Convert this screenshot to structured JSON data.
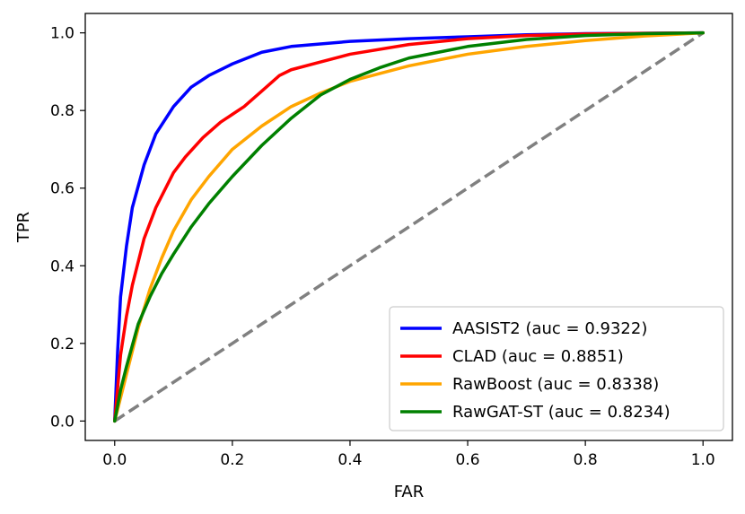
{
  "chart_data": {
    "type": "line",
    "title": "",
    "xlabel": "FAR",
    "ylabel": "TPR",
    "xlim": [
      -0.05,
      1.05
    ],
    "ylim": [
      -0.05,
      1.05
    ],
    "xticks": [
      "0.0",
      "0.2",
      "0.4",
      "0.6",
      "0.8",
      "1.0"
    ],
    "yticks": [
      "0.0",
      "0.2",
      "0.4",
      "0.6",
      "0.8",
      "1.0"
    ],
    "grid": false,
    "legend_position": "lower-right",
    "series": [
      {
        "name": "AASIST2 (auc = 0.9322)",
        "color": "#0000ff",
        "x": [
          0,
          0.005,
          0.01,
          0.02,
          0.03,
          0.05,
          0.07,
          0.1,
          0.13,
          0.16,
          0.2,
          0.25,
          0.3,
          0.4,
          0.5,
          0.6,
          0.7,
          0.8,
          0.9,
          1.0
        ],
        "y": [
          0,
          0.18,
          0.32,
          0.45,
          0.55,
          0.66,
          0.74,
          0.81,
          0.86,
          0.89,
          0.92,
          0.95,
          0.965,
          0.978,
          0.985,
          0.99,
          0.995,
          0.998,
          0.999,
          1.0
        ]
      },
      {
        "name": "CLAD (auc = 0.8851)",
        "color": "#ff0000",
        "x": [
          0,
          0.01,
          0.02,
          0.03,
          0.05,
          0.07,
          0.1,
          0.12,
          0.15,
          0.18,
          0.2,
          0.22,
          0.25,
          0.28,
          0.3,
          0.35,
          0.4,
          0.5,
          0.6,
          0.7,
          0.8,
          0.9,
          1.0
        ],
        "y": [
          0,
          0.17,
          0.27,
          0.35,
          0.47,
          0.55,
          0.64,
          0.68,
          0.73,
          0.77,
          0.79,
          0.81,
          0.85,
          0.89,
          0.905,
          0.925,
          0.945,
          0.97,
          0.985,
          0.993,
          0.997,
          0.999,
          1.0
        ]
      },
      {
        "name": "RawBoost (auc = 0.8338)",
        "color": "#ffa500",
        "x": [
          0,
          0.01,
          0.02,
          0.04,
          0.06,
          0.08,
          0.1,
          0.13,
          0.16,
          0.2,
          0.25,
          0.3,
          0.35,
          0.4,
          0.5,
          0.6,
          0.7,
          0.8,
          0.9,
          1.0
        ],
        "y": [
          0,
          0.06,
          0.12,
          0.24,
          0.34,
          0.42,
          0.49,
          0.57,
          0.63,
          0.7,
          0.76,
          0.81,
          0.845,
          0.875,
          0.915,
          0.945,
          0.965,
          0.98,
          0.992,
          1.0
        ]
      },
      {
        "name": "RawGAT-ST (auc = 0.8234)",
        "color": "#008000",
        "x": [
          0,
          0.01,
          0.02,
          0.04,
          0.06,
          0.08,
          0.1,
          0.13,
          0.16,
          0.2,
          0.25,
          0.3,
          0.35,
          0.4,
          0.45,
          0.5,
          0.6,
          0.7,
          0.8,
          0.9,
          1.0
        ],
        "y": [
          0,
          0.08,
          0.14,
          0.25,
          0.32,
          0.38,
          0.43,
          0.5,
          0.56,
          0.63,
          0.71,
          0.78,
          0.84,
          0.88,
          0.91,
          0.935,
          0.965,
          0.983,
          0.993,
          0.998,
          1.0
        ]
      }
    ],
    "reference_line": {
      "name": "chance",
      "color": "#808080",
      "style": "dashed",
      "x": [
        0,
        1
      ],
      "y": [
        0,
        1
      ]
    }
  }
}
